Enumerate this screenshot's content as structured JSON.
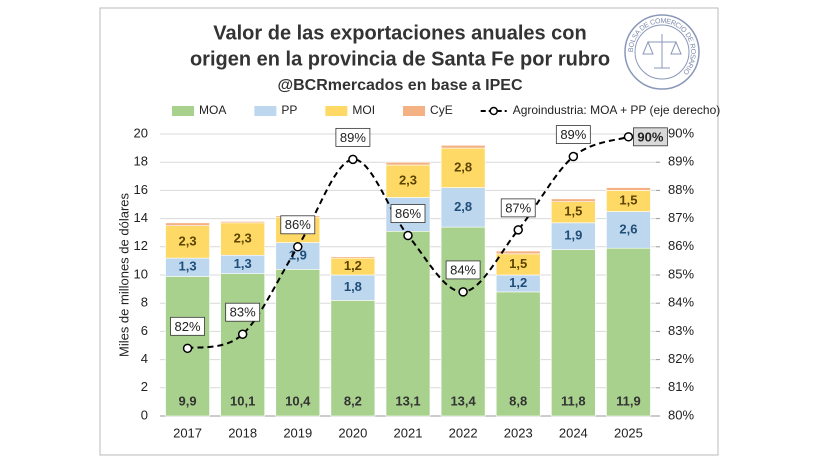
{
  "chart_data": {
    "type": "bar",
    "title": [
      "Valor de las exportaciones anuales con",
      "origen en la provincia de Santa Fe por rubro"
    ],
    "subtitle": "@BCRmercados en base a IPEC",
    "logo": "BOLSA DE COMERCIO DE ROSARIO",
    "y_label": "Miles de millones de dólares",
    "stacked": true,
    "categories": [
      "2017",
      "2018",
      "2019",
      "2020",
      "2021",
      "2022",
      "2023",
      "2024",
      "2025"
    ],
    "series": [
      {
        "name": "MOA",
        "color": "#a9d18e",
        "values": [
          9.9,
          10.1,
          10.4,
          8.2,
          13.1,
          13.4,
          8.8,
          11.8,
          11.9
        ],
        "value_labels": [
          "9,9",
          "10,1",
          "10,4",
          "8,2",
          "13,1",
          "13,4",
          "8,8",
          "11,8",
          "11,9"
        ]
      },
      {
        "name": "PP",
        "color": "#bdd7ee",
        "values": [
          1.3,
          1.3,
          1.9,
          1.8,
          2.4,
          2.8,
          1.2,
          1.9,
          2.6
        ],
        "value_labels": [
          "1,3",
          "1,3",
          "1,9",
          "1,8",
          null,
          "2,8",
          "1,2",
          "1,9",
          "2,6"
        ]
      },
      {
        "name": "MOI",
        "color": "#ffd966",
        "values": [
          2.3,
          2.3,
          1.8,
          1.2,
          2.3,
          2.8,
          1.5,
          1.5,
          1.5
        ],
        "value_labels": [
          "2,3",
          "2,3",
          null,
          "1,2",
          "2,3",
          "2,8",
          "1,5",
          "1,5",
          "1,5"
        ]
      },
      {
        "name": "CyE",
        "color": "#f4b183",
        "values": [
          0.2,
          0.1,
          0.1,
          0.1,
          0.2,
          0.2,
          0.2,
          0.2,
          0.2
        ]
      },
      {
        "name": "Agroindustria: MOA + PP (eje derecho)",
        "type": "line",
        "axis": "y2",
        "color": "#000000",
        "dashed": true,
        "values": [
          82.4,
          82.9,
          86.0,
          89.1,
          86.4,
          84.4,
          86.6,
          89.2,
          89.9
        ],
        "value_labels": [
          "82%",
          "83%",
          "86%",
          "89%",
          "86%",
          "84%",
          "87%",
          "89%",
          "90%"
        ]
      }
    ],
    "ylim": [
      0,
      20
    ],
    "yticks": [
      0,
      2,
      4,
      6,
      8,
      10,
      12,
      14,
      16,
      18,
      20
    ],
    "y2lim": [
      80,
      90
    ],
    "y2ticks": [
      {
        "value": 80,
        "label": "80%"
      },
      {
        "value": 81,
        "label": "81%"
      },
      {
        "value": 82,
        "label": "82%"
      },
      {
        "value": 83,
        "label": "83%"
      },
      {
        "value": 84,
        "label": "84%"
      },
      {
        "value": 85,
        "label": "85%"
      },
      {
        "value": 86,
        "label": "86%"
      },
      {
        "value": 87,
        "label": "87%"
      },
      {
        "value": 88,
        "label": "88%"
      },
      {
        "value": 89,
        "label": "89%"
      },
      {
        "value": 90,
        "label": "90%"
      }
    ],
    "grid": true,
    "legend": "top"
  }
}
